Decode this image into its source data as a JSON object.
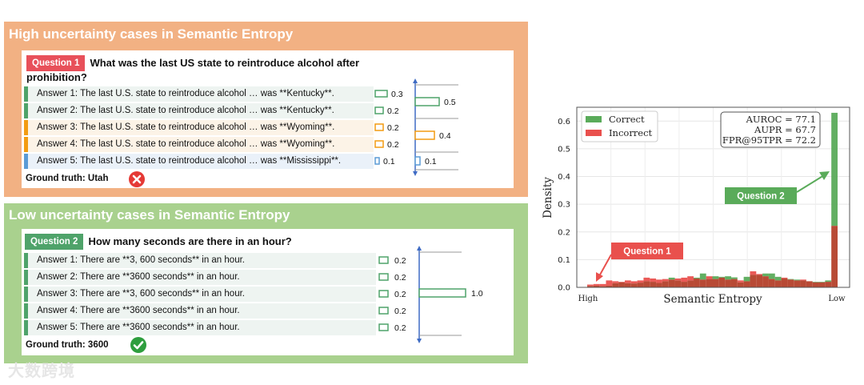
{
  "high_panel": {
    "title": "High uncertainty cases in Semantic Entropy",
    "question_tag": "Question 1",
    "question_text": "What was the last US state to reintroduce alcohol after prohibition?",
    "answers": [
      "Answer 1: The last U.S. state to reintroduce alcohol … was **Kentucky**.",
      "Answer 2: The last U.S. state to reintroduce alcohol … was **Kentucky**.",
      "Answer 3: The last U.S. state to reintroduce alcohol … was **Wyoming**.",
      "Answer 4: The last U.S. state to reintroduce alcohol … was **Wyoming**.",
      "Answer 5: The last U.S. state to reintroduce alcohol … was **Mississippi**."
    ],
    "answer_probs": [
      0.3,
      0.2,
      0.2,
      0.2,
      0.1
    ],
    "answer_prob_labels": [
      "0.3",
      "0.2",
      "0.2",
      "0.2",
      "0.1"
    ],
    "cluster_probs": [
      0.5,
      0.4,
      0.1
    ],
    "cluster_prob_labels": [
      "0.5",
      "0.4",
      "0.1"
    ],
    "ground_truth": "Ground truth: Utah"
  },
  "low_panel": {
    "title": "Low uncertainty cases in Semantic Entropy",
    "question_tag": "Question 2",
    "question_text": "How many seconds are there in an hour?",
    "answers": [
      "Answer 1: There are **3, 600 seconds** in an hour.",
      "Answer 2: There are **3600 seconds** in an hour.",
      "Answer 3: There are **3, 600 seconds** in an hour.",
      "Answer 4: There are **3600 seconds** in an hour.",
      "Answer 5: There are **3600 seconds** in an hour."
    ],
    "answer_probs": [
      0.2,
      0.2,
      0.2,
      0.2,
      0.2
    ],
    "answer_prob_labels": [
      "0.2",
      "0.2",
      "0.2",
      "0.2",
      "0.2"
    ],
    "cluster_probs": [
      1.0
    ],
    "cluster_prob_labels": [
      "1.0"
    ],
    "ground_truth": "Ground truth: 3600"
  },
  "colors": {
    "high_panel_bg": "#f2b183",
    "low_panel_bg": "#a9d18e",
    "teal": "#4fa36a",
    "orange": "#f39c12",
    "blue": "#5b9bd5",
    "axis_blue": "#3f6bc4",
    "correct": "#5aab5a",
    "incorrect": "#e9504d",
    "overlap": "#b84a35",
    "wrong_mark": "#e53935",
    "right_mark": "#2e9e3e"
  },
  "icons": {
    "wrong": "x-circle-icon",
    "right": "check-circle-icon"
  },
  "chart_data": {
    "type": "bar",
    "xlabel": "Semantic Entropy",
    "ylabel": "Density",
    "x_tick_labels": [
      "High",
      "Low"
    ],
    "ylim": [
      0,
      0.65
    ],
    "yticks": [
      0.0,
      0.1,
      0.2,
      0.3,
      0.4,
      0.5,
      0.6
    ],
    "ytick_labels": [
      "0.0",
      "0.1",
      "0.2",
      "0.3",
      "0.4",
      "0.5",
      "0.6"
    ],
    "grid": true,
    "legend_position": "top-left",
    "series": [
      {
        "name": "Correct",
        "values": [
          0.005,
          0.006,
          0.004,
          0.006,
          0.015,
          0.018,
          0.015,
          0.014,
          0.017,
          0.022,
          0.02,
          0.016,
          0.022,
          0.035,
          0.025,
          0.02,
          0.025,
          0.035,
          0.05,
          0.03,
          0.04,
          0.038,
          0.04,
          0.036,
          0.018,
          0.038,
          0.045,
          0.045,
          0.05,
          0.05,
          0.038,
          0.032,
          0.03,
          0.028,
          0.025,
          0.022,
          0.02,
          0.02,
          0.025,
          0.63
        ]
      },
      {
        "name": "Incorrect",
        "values": [
          0.01,
          0.012,
          0.012,
          0.025,
          0.022,
          0.02,
          0.025,
          0.022,
          0.025,
          0.035,
          0.032,
          0.028,
          0.03,
          0.028,
          0.032,
          0.035,
          0.04,
          0.032,
          0.028,
          0.04,
          0.03,
          0.035,
          0.028,
          0.03,
          0.025,
          0.022,
          0.058,
          0.048,
          0.04,
          0.03,
          0.025,
          0.035,
          0.028,
          0.025,
          0.028,
          0.022,
          0.018,
          0.018,
          0.02,
          0.222
        ]
      }
    ],
    "stats_box": [
      "AUROC = 77.1",
      "AUPR = 67.7",
      "FPR@95TPR = 72.2"
    ],
    "annotations": [
      {
        "label": "Question 1",
        "bin": 1
      },
      {
        "label": "Question 2",
        "bin": 39
      }
    ]
  },
  "watermark": "大数跨境"
}
